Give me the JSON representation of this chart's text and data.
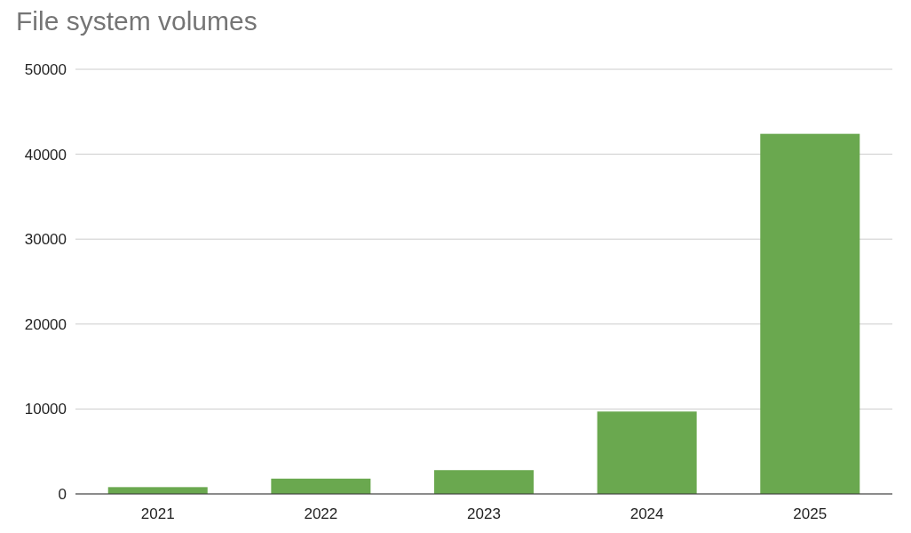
{
  "chart_data": {
    "type": "bar",
    "title": "File system volumes",
    "categories": [
      "2021",
      "2022",
      "2023",
      "2024",
      "2025"
    ],
    "values": [
      800,
      1800,
      2800,
      9700,
      42400
    ],
    "color": "#6aa84f",
    "ylim": [
      0,
      50000
    ],
    "yticks": [
      0,
      10000,
      20000,
      30000,
      40000,
      50000
    ],
    "grid": "y"
  }
}
